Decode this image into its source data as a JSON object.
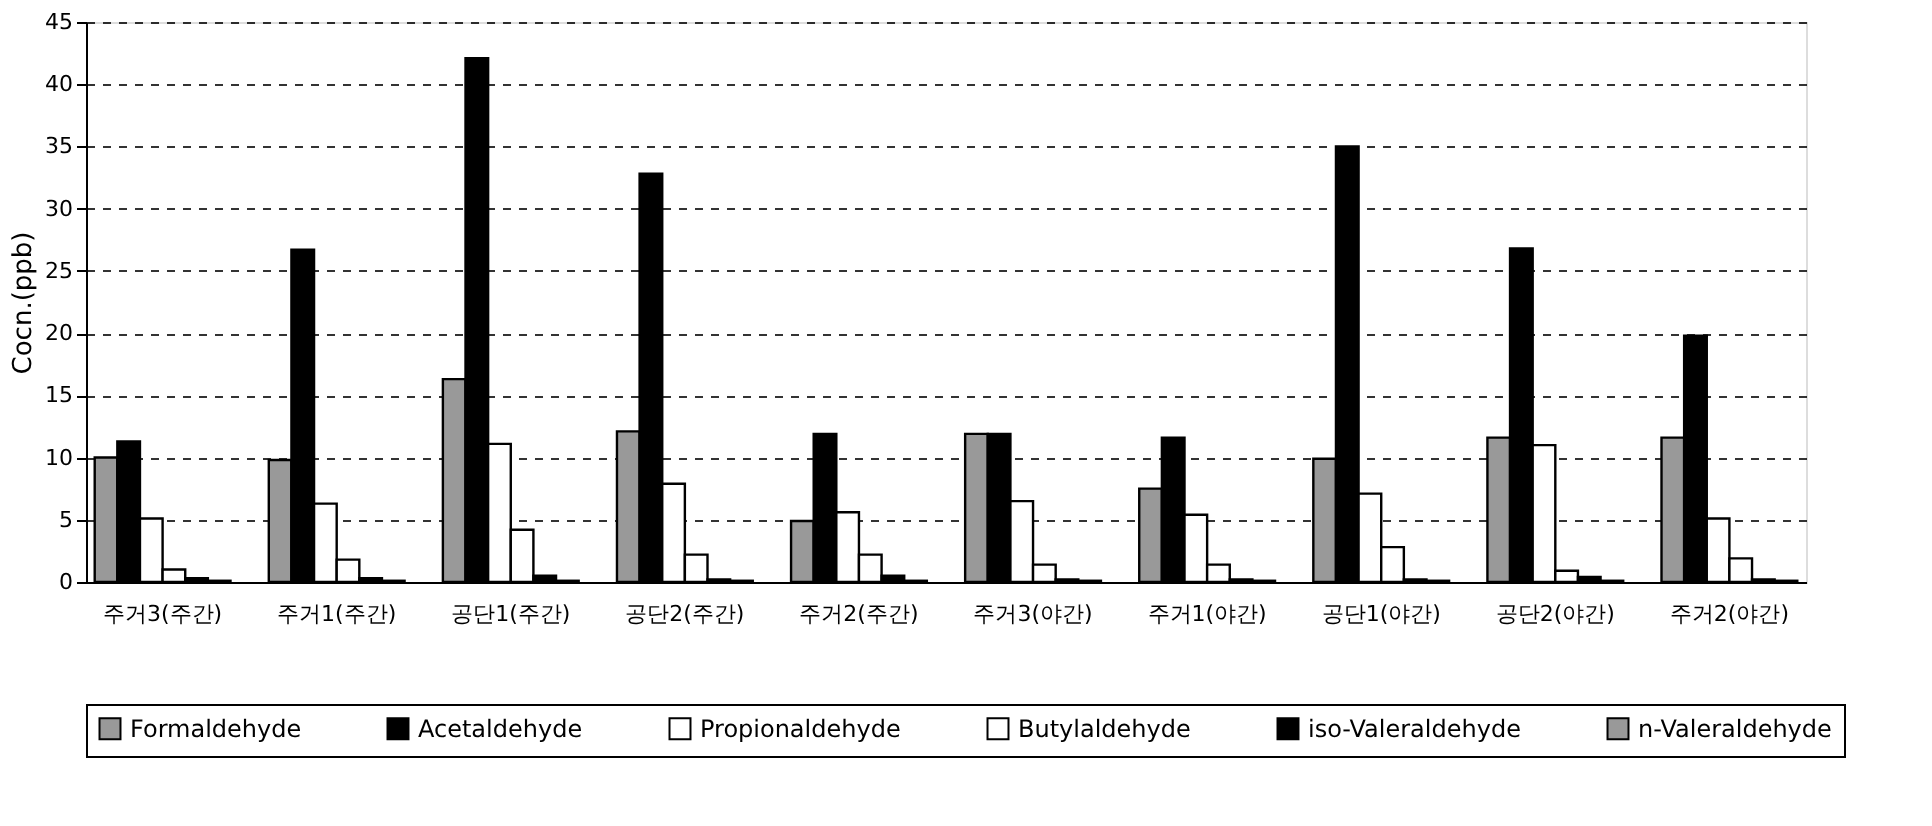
{
  "chart_data": {
    "type": "bar",
    "ylabel": "Cocn.(ppb)",
    "categories": [
      "주거3(주간)",
      "주거1(주간)",
      "공단1(주간)",
      "공단2(주간)",
      "주거2(주간)",
      "주거3(야간)",
      "주거1(야간)",
      "공단1(야간)",
      "공단2(야간)",
      "주거2(야간)"
    ],
    "series": [
      {
        "name": "Formaldehyde",
        "color": "#999999",
        "values": [
          10,
          9.8,
          16.3,
          12.1,
          4.9,
          11.9,
          7.5,
          9.9,
          11.6,
          11.6
        ]
      },
      {
        "name": "Acetaldehyde",
        "color": "#000000",
        "values": [
          11.3,
          26.7,
          42.1,
          32.8,
          11.9,
          11.9,
          11.6,
          35.0,
          26.8,
          19.8
        ]
      },
      {
        "name": "Propionaldehyde",
        "color": "#ffffff",
        "values": [
          5.1,
          6.3,
          11.1,
          7.9,
          5.6,
          6.5,
          5.4,
          7.1,
          11.0,
          5.1
        ]
      },
      {
        "name": "Butylaldehyde",
        "color": "#ffffff",
        "values": [
          1.0,
          1.8,
          4.2,
          2.2,
          2.2,
          1.4,
          1.4,
          2.8,
          0.9,
          1.9
        ]
      },
      {
        "name": "iso-Valeraldehyde",
        "color": "#000000",
        "values": [
          0.3,
          0.3,
          0.5,
          0.2,
          0.5,
          0.2,
          0.2,
          0.2,
          0.4,
          0.2
        ]
      },
      {
        "name": "n-Valeraldehyde",
        "color": "#999999",
        "values": [
          0.1,
          0.1,
          0.1,
          0.1,
          0.1,
          0.1,
          0.1,
          0.1,
          0.1,
          0.1
        ]
      }
    ],
    "ylim": [
      0,
      45
    ],
    "yticks": [
      0,
      5,
      10,
      15,
      20,
      25,
      30,
      35,
      40,
      45
    ],
    "grid": "y",
    "legend": "bottom"
  }
}
